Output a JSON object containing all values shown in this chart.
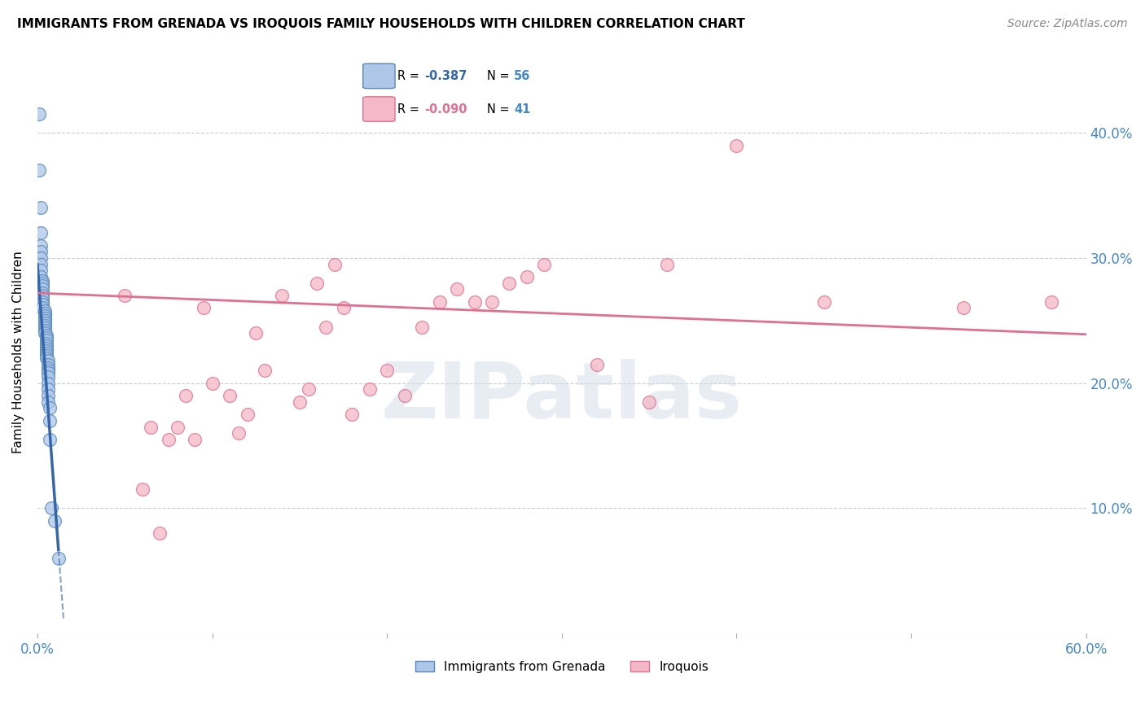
{
  "title": "IMMIGRANTS FROM GRENADA VS IROQUOIS FAMILY HOUSEHOLDS WITH CHILDREN CORRELATION CHART",
  "source": "Source: ZipAtlas.com",
  "ylabel": "Family Households with Children",
  "xlim": [
    0.0,
    0.6
  ],
  "ylim": [
    0.0,
    0.45
  ],
  "xtick_positions": [
    0.0,
    0.1,
    0.2,
    0.3,
    0.4,
    0.5,
    0.6
  ],
  "xtick_labels": [
    "0.0%",
    "",
    "",
    "",
    "",
    "",
    "60.0%"
  ],
  "ytick_positions": [
    0.0,
    0.1,
    0.2,
    0.3,
    0.4
  ],
  "ytick_labels_right": [
    "",
    "10.0%",
    "20.0%",
    "30.0%",
    "40.0%"
  ],
  "blue_R": "-0.387",
  "blue_N": "56",
  "pink_R": "-0.090",
  "pink_N": "41",
  "legend_label1": "Immigrants from Grenada",
  "legend_label2": "Iroquois",
  "blue_color": "#aec6e8",
  "blue_edge_color": "#5588bb",
  "blue_line_color": "#3366aa",
  "pink_color": "#f4b8c8",
  "pink_edge_color": "#e07090",
  "pink_line_color": "#e07090",
  "axis_label_color": "#4488cc",
  "grid_color": "#cccccc",
  "watermark_color": "#d0dde8",
  "watermark": "ZIPatlas",
  "blue_points_x": [
    0.001,
    0.001,
    0.002,
    0.002,
    0.002,
    0.002,
    0.002,
    0.002,
    0.002,
    0.002,
    0.003,
    0.003,
    0.003,
    0.003,
    0.003,
    0.003,
    0.003,
    0.003,
    0.003,
    0.003,
    0.004,
    0.004,
    0.004,
    0.004,
    0.004,
    0.004,
    0.004,
    0.004,
    0.004,
    0.004,
    0.005,
    0.005,
    0.005,
    0.005,
    0.005,
    0.005,
    0.005,
    0.005,
    0.005,
    0.005,
    0.006,
    0.006,
    0.006,
    0.006,
    0.006,
    0.006,
    0.006,
    0.006,
    0.006,
    0.006,
    0.007,
    0.007,
    0.007,
    0.008,
    0.01,
    0.012
  ],
  "blue_points_y": [
    0.415,
    0.37,
    0.34,
    0.32,
    0.31,
    0.305,
    0.3,
    0.295,
    0.29,
    0.285,
    0.282,
    0.28,
    0.278,
    0.275,
    0.272,
    0.27,
    0.268,
    0.265,
    0.263,
    0.26,
    0.258,
    0.256,
    0.254,
    0.252,
    0.25,
    0.248,
    0.246,
    0.244,
    0.242,
    0.24,
    0.238,
    0.236,
    0.234,
    0.232,
    0.23,
    0.228,
    0.226,
    0.224,
    0.222,
    0.22,
    0.218,
    0.215,
    0.212,
    0.21,
    0.208,
    0.205,
    0.2,
    0.195,
    0.19,
    0.185,
    0.18,
    0.17,
    0.155,
    0.1,
    0.09,
    0.06
  ],
  "pink_points_x": [
    0.05,
    0.06,
    0.065,
    0.07,
    0.075,
    0.08,
    0.085,
    0.09,
    0.095,
    0.1,
    0.11,
    0.115,
    0.12,
    0.125,
    0.13,
    0.14,
    0.15,
    0.155,
    0.16,
    0.165,
    0.17,
    0.175,
    0.18,
    0.19,
    0.2,
    0.21,
    0.22,
    0.23,
    0.24,
    0.25,
    0.26,
    0.27,
    0.28,
    0.29,
    0.32,
    0.35,
    0.36,
    0.4,
    0.45,
    0.53,
    0.58
  ],
  "pink_points_y": [
    0.27,
    0.115,
    0.165,
    0.08,
    0.155,
    0.165,
    0.19,
    0.155,
    0.26,
    0.2,
    0.19,
    0.16,
    0.175,
    0.24,
    0.21,
    0.27,
    0.185,
    0.195,
    0.28,
    0.245,
    0.295,
    0.26,
    0.175,
    0.195,
    0.21,
    0.19,
    0.245,
    0.265,
    0.275,
    0.265,
    0.265,
    0.28,
    0.285,
    0.295,
    0.215,
    0.185,
    0.295,
    0.39,
    0.265,
    0.26,
    0.265
  ],
  "blue_line_x0": 0.0,
  "blue_line_x_solid_end": 0.012,
  "blue_line_x_dash_end": 0.3,
  "pink_line_x0": 0.0,
  "pink_line_x1": 0.6,
  "blue_line_y0": 0.295,
  "blue_line_slope": -19.0,
  "pink_line_y0": 0.272,
  "pink_line_slope": -0.055
}
